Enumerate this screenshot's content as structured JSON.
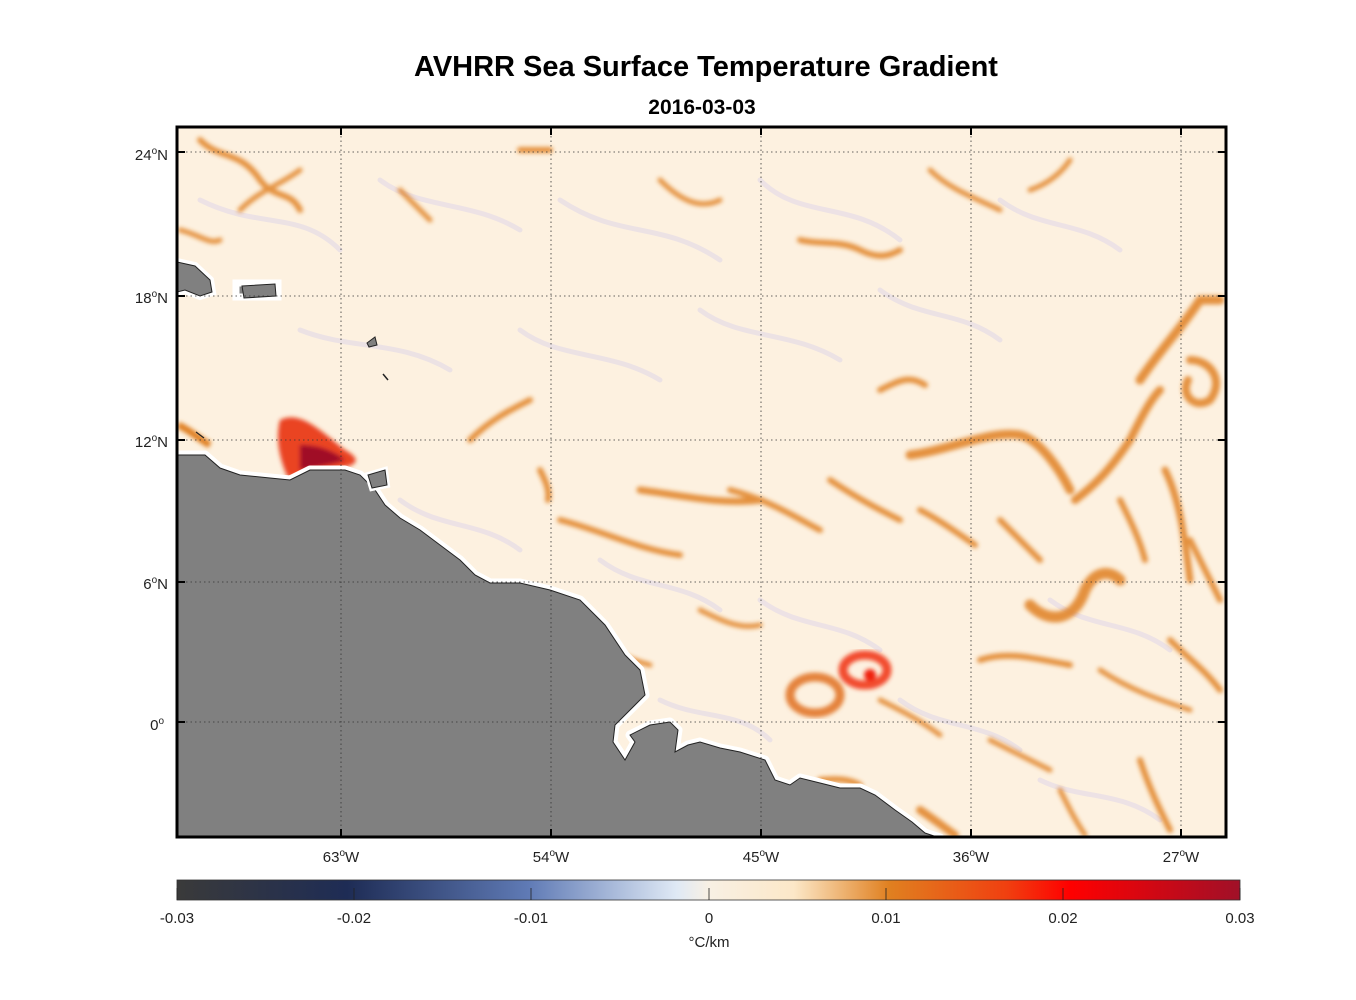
{
  "title": "AVHRR Sea Surface Temperature Gradient",
  "subtitle": "2016-03-03",
  "map": {
    "lat_ticks": [
      {
        "deg": "24",
        "sup": "o",
        "hemi": "N"
      },
      {
        "deg": "18",
        "sup": "o",
        "hemi": "N"
      },
      {
        "deg": "12",
        "sup": "o",
        "hemi": "N"
      },
      {
        "deg": "6",
        "sup": "o",
        "hemi": "N"
      },
      {
        "deg": "0",
        "sup": "o",
        "hemi": ""
      }
    ],
    "lon_ticks": [
      {
        "deg": "63",
        "sup": "o",
        "hemi": "W"
      },
      {
        "deg": "54",
        "sup": "o",
        "hemi": "W"
      },
      {
        "deg": "45",
        "sup": "o",
        "hemi": "W"
      },
      {
        "deg": "36",
        "sup": "o",
        "hemi": "W"
      },
      {
        "deg": "27",
        "sup": "o",
        "hemi": "W"
      }
    ],
    "land_color": "#808080",
    "ocean_base_color": "#fdf1e0",
    "grid": true
  },
  "colorbar": {
    "ticks": [
      "-0.03",
      "-0.02",
      "-0.01",
      "0",
      "0.01",
      "0.02",
      "0.03"
    ],
    "unit": "°C/km",
    "range": [
      -0.03,
      0.03
    ],
    "colors": [
      "#3a3a3a",
      "#1e2c55",
      "#5f7ab5",
      "#dfe9f5",
      "#f8ecd8",
      "#fce8c8",
      "#e08020",
      "#f04010",
      "#ff0000",
      "#a01028"
    ]
  }
}
